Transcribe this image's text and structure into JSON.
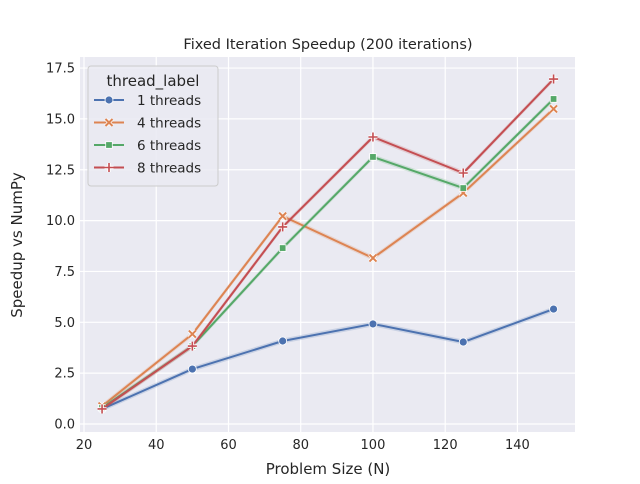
{
  "chart_data": {
    "type": "line",
    "title": "Fixed Iteration Speedup (200 iterations)",
    "xlabel": "Problem Size (N)",
    "ylabel": "Speedup vs NumPy",
    "xlim": [
      18.75,
      156.25
    ],
    "ylim": [
      -0.2,
      17.9
    ],
    "xticks": [
      20,
      40,
      60,
      80,
      100,
      120,
      140
    ],
    "yticks": [
      "0.0",
      "2.5",
      "5.0",
      "7.5",
      "10.0",
      "12.5",
      "15.0",
      "17.5"
    ],
    "grid": true,
    "legend": {
      "title": "thread_label",
      "placement": "top-left"
    },
    "x": [
      25,
      50,
      75,
      100,
      125,
      150
    ],
    "series": [
      {
        "name": "1 threads",
        "color": "#4c72b0",
        "marker": "circle",
        "values": [
          0.74,
          2.7,
          4.08,
          4.92,
          4.03,
          5.65
        ]
      },
      {
        "name": "4 threads",
        "color": "#dd8452",
        "marker": "x",
        "values": [
          0.88,
          4.42,
          10.22,
          8.16,
          11.36,
          15.49
        ]
      },
      {
        "name": "6 threads",
        "color": "#55a868",
        "marker": "square",
        "values": [
          0.79,
          3.83,
          8.65,
          13.13,
          11.6,
          15.98
        ]
      },
      {
        "name": "8 threads",
        "color": "#c44e52",
        "marker": "plus",
        "values": [
          0.74,
          3.83,
          9.69,
          14.11,
          12.34,
          16.96
        ]
      }
    ]
  }
}
